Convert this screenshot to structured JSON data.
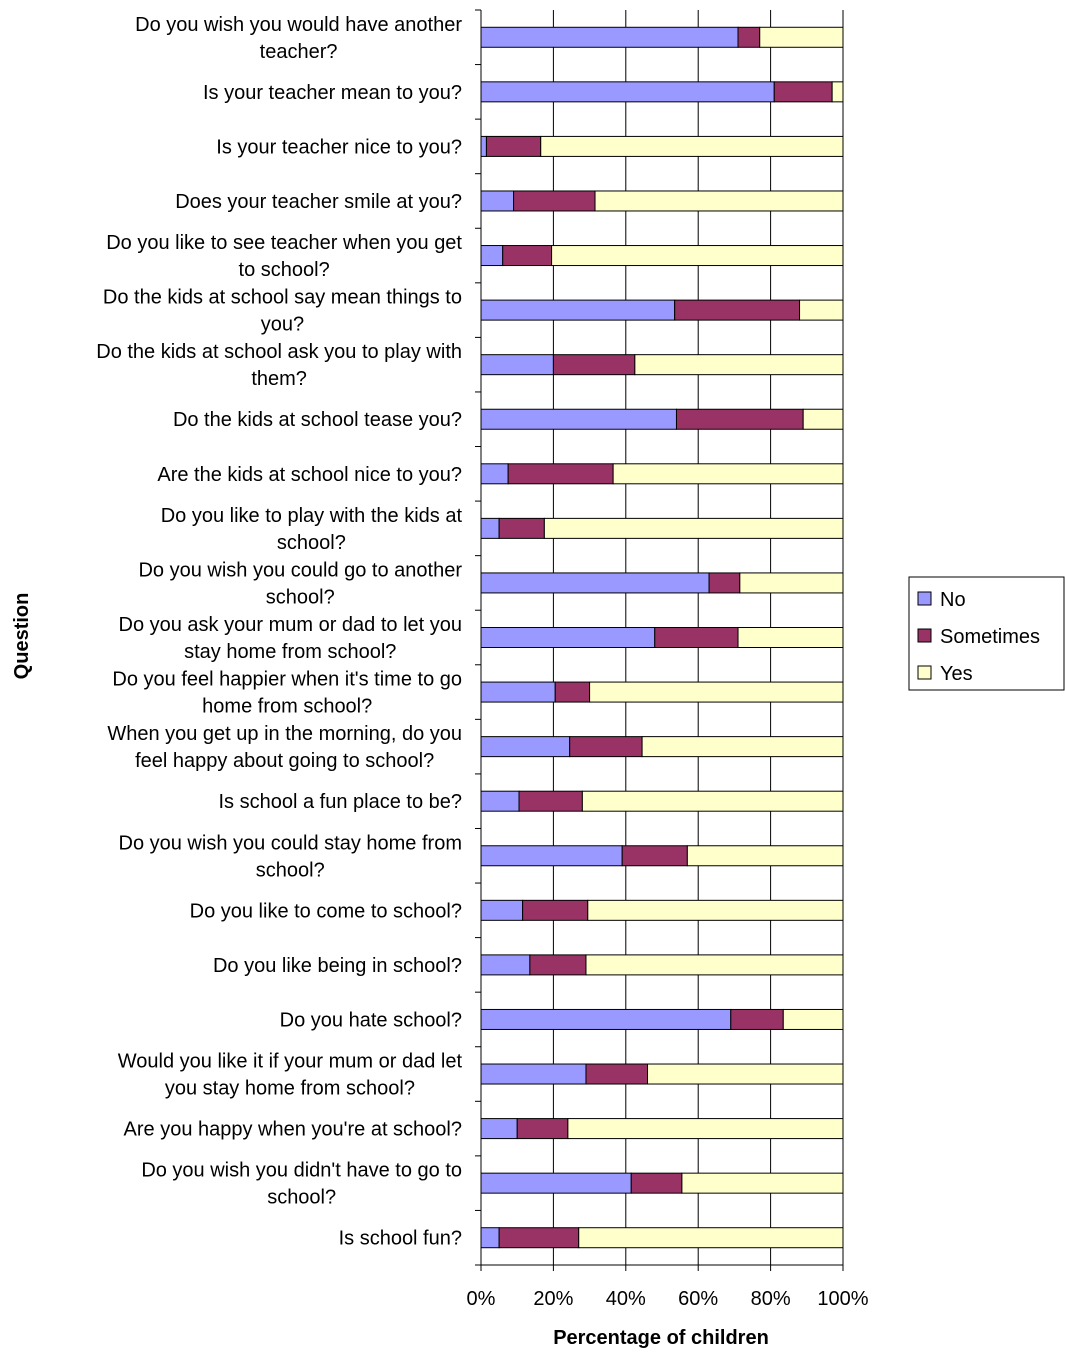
{
  "chart_data": {
    "type": "bar",
    "orientation": "horizontal",
    "stacked": "percent",
    "xlabel": "Percentage of children",
    "ylabel": "Question",
    "xlim": [
      0,
      100
    ],
    "x_ticks": [
      "0%",
      "20%",
      "40%",
      "60%",
      "80%",
      "100%"
    ],
    "grid": true,
    "legend_position": "right",
    "categories": [
      [
        "Do you wish you would have another",
        "teacher?"
      ],
      [
        "Is your teacher mean to you?"
      ],
      [
        "Is your teacher nice to you?"
      ],
      [
        "Does your teacher smile at you?"
      ],
      [
        "Do you like to see teacher when you get",
        "to school?"
      ],
      [
        "Do the kids at school say mean things to",
        "you?"
      ],
      [
        "Do the kids at school ask you to play with",
        "them?"
      ],
      [
        "Do the kids at school tease you?"
      ],
      [
        "Are the kids at school nice to you?"
      ],
      [
        "Do you like to play with the kids at",
        "school?"
      ],
      [
        "Do you wish you could go to another",
        "school?"
      ],
      [
        "Do you ask your mum or dad to let you",
        "stay home from school?"
      ],
      [
        "Do you feel happier when it's time to go",
        "home from school?"
      ],
      [
        "When you get up in the morning, do you",
        "feel happy about going to school?"
      ],
      [
        "Is school a fun place to be?"
      ],
      [
        "Do you wish you could stay home from",
        "school?"
      ],
      [
        "Do you like to come to school?"
      ],
      [
        "Do you like being in school?"
      ],
      [
        "Do you hate school?"
      ],
      [
        "Would you like it if your mum or dad let",
        "you stay home from school?"
      ],
      [
        "Are you happy when you're at school?"
      ],
      [
        "Do you wish you didn't have to go to",
        "school?"
      ],
      [
        "Is school fun?"
      ]
    ],
    "series": [
      {
        "name": "No",
        "color": "#9999ff",
        "values": [
          71,
          81,
          1.5,
          9,
          6,
          53.5,
          20,
          54,
          7.5,
          5,
          63,
          48,
          20.5,
          24.5,
          10.5,
          39,
          11.5,
          13.5,
          69,
          29,
          10,
          41.5,
          5
        ]
      },
      {
        "name": "Sometimes",
        "color": "#993366",
        "values": [
          6,
          16,
          15,
          22.5,
          13.5,
          34.5,
          22.5,
          35,
          29,
          12.5,
          8.5,
          23,
          9.5,
          20,
          17.5,
          18,
          18,
          15.5,
          14.5,
          17,
          14,
          14,
          22
        ]
      },
      {
        "name": "Yes",
        "color": "#ffffcc",
        "values": [
          23,
          3,
          83.5,
          68.5,
          80.5,
          12,
          57.5,
          11,
          63.5,
          82.5,
          28.5,
          29,
          70,
          55.5,
          72,
          43,
          70.5,
          71,
          16.5,
          54,
          76,
          44.5,
          73
        ]
      }
    ]
  }
}
